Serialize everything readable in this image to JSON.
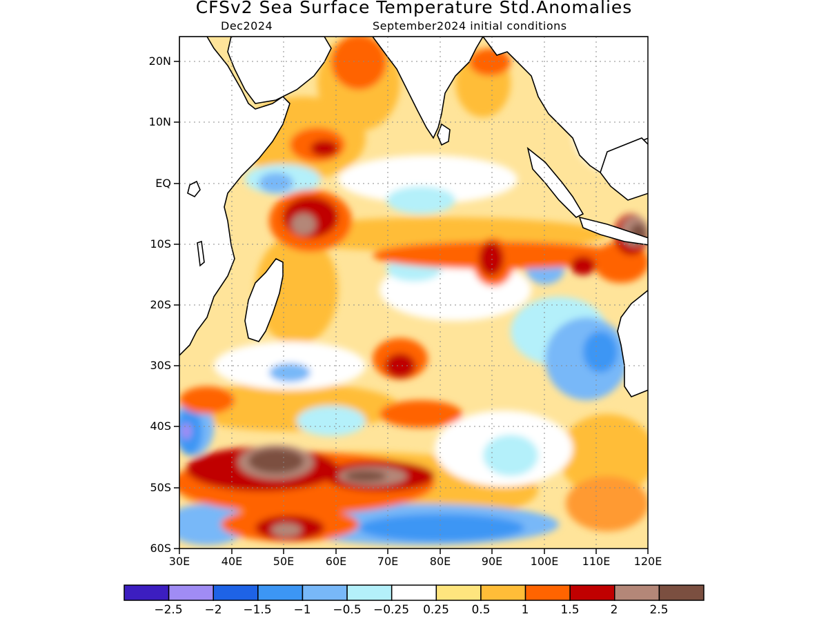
{
  "title": "CFSv2 Sea Surface Temperature Std.Anomalies",
  "subtitle_left": "Dec2024",
  "subtitle_right": "September2024 initial conditions",
  "lat_labels": [
    "20N",
    "10N",
    "EQ",
    "10S",
    "20S",
    "30S",
    "40S",
    "50S",
    "60S"
  ],
  "lon_labels": [
    "30E",
    "40E",
    "50E",
    "60E",
    "70E",
    "80E",
    "90E",
    "100E",
    "110E",
    "120E"
  ],
  "colorbar": {
    "colors": [
      "#3c1ec0",
      "#a08cf4",
      "#1e63e6",
      "#3c96f4",
      "#78b8f8",
      "#b4f0fa",
      "#ffffff",
      "#fee57e",
      "#ffbd38",
      "#ff6400",
      "#c00000",
      "#b48778",
      "#7b4f40"
    ],
    "labels": [
      "−2.5",
      "−2",
      "−1.5",
      "−1",
      "−0.5",
      "−0.25",
      "0.25",
      "0.5",
      "1",
      "1.5",
      "2",
      "2.5"
    ]
  },
  "map_data": {
    "region": "Indian Ocean",
    "lon_range": [
      30,
      120
    ],
    "lat_range": [
      -60,
      24
    ],
    "variable": "Sea Surface Temperature Std. Anomalies",
    "features": [
      {
        "name": "warm anomaly south of 40S",
        "center": [
          55,
          -46
        ],
        "level": 2.5
      },
      {
        "name": "warm anomaly south of 40S",
        "center": [
          72,
          -49
        ],
        "level": 2.5
      },
      {
        "name": "warm anomaly",
        "center": [
          52,
          -4
        ],
        "level": 2.5
      },
      {
        "name": "warm anomaly",
        "center": [
          118,
          -8
        ],
        "level": 2.5
      },
      {
        "name": "warm anomaly",
        "center": [
          50,
          -57
        ],
        "level": 2.5
      },
      {
        "name": "cold anomaly",
        "center": [
          32,
          -40
        ],
        "level": -1.5
      },
      {
        "name": "cold anomaly",
        "center": [
          83,
          -57
        ],
        "level": -1.5
      },
      {
        "name": "cold anomaly",
        "center": [
          108,
          -30
        ],
        "level": -1.5
      },
      {
        "name": "cold anomaly",
        "center": [
          47,
          0
        ],
        "level": -1.5
      }
    ]
  }
}
